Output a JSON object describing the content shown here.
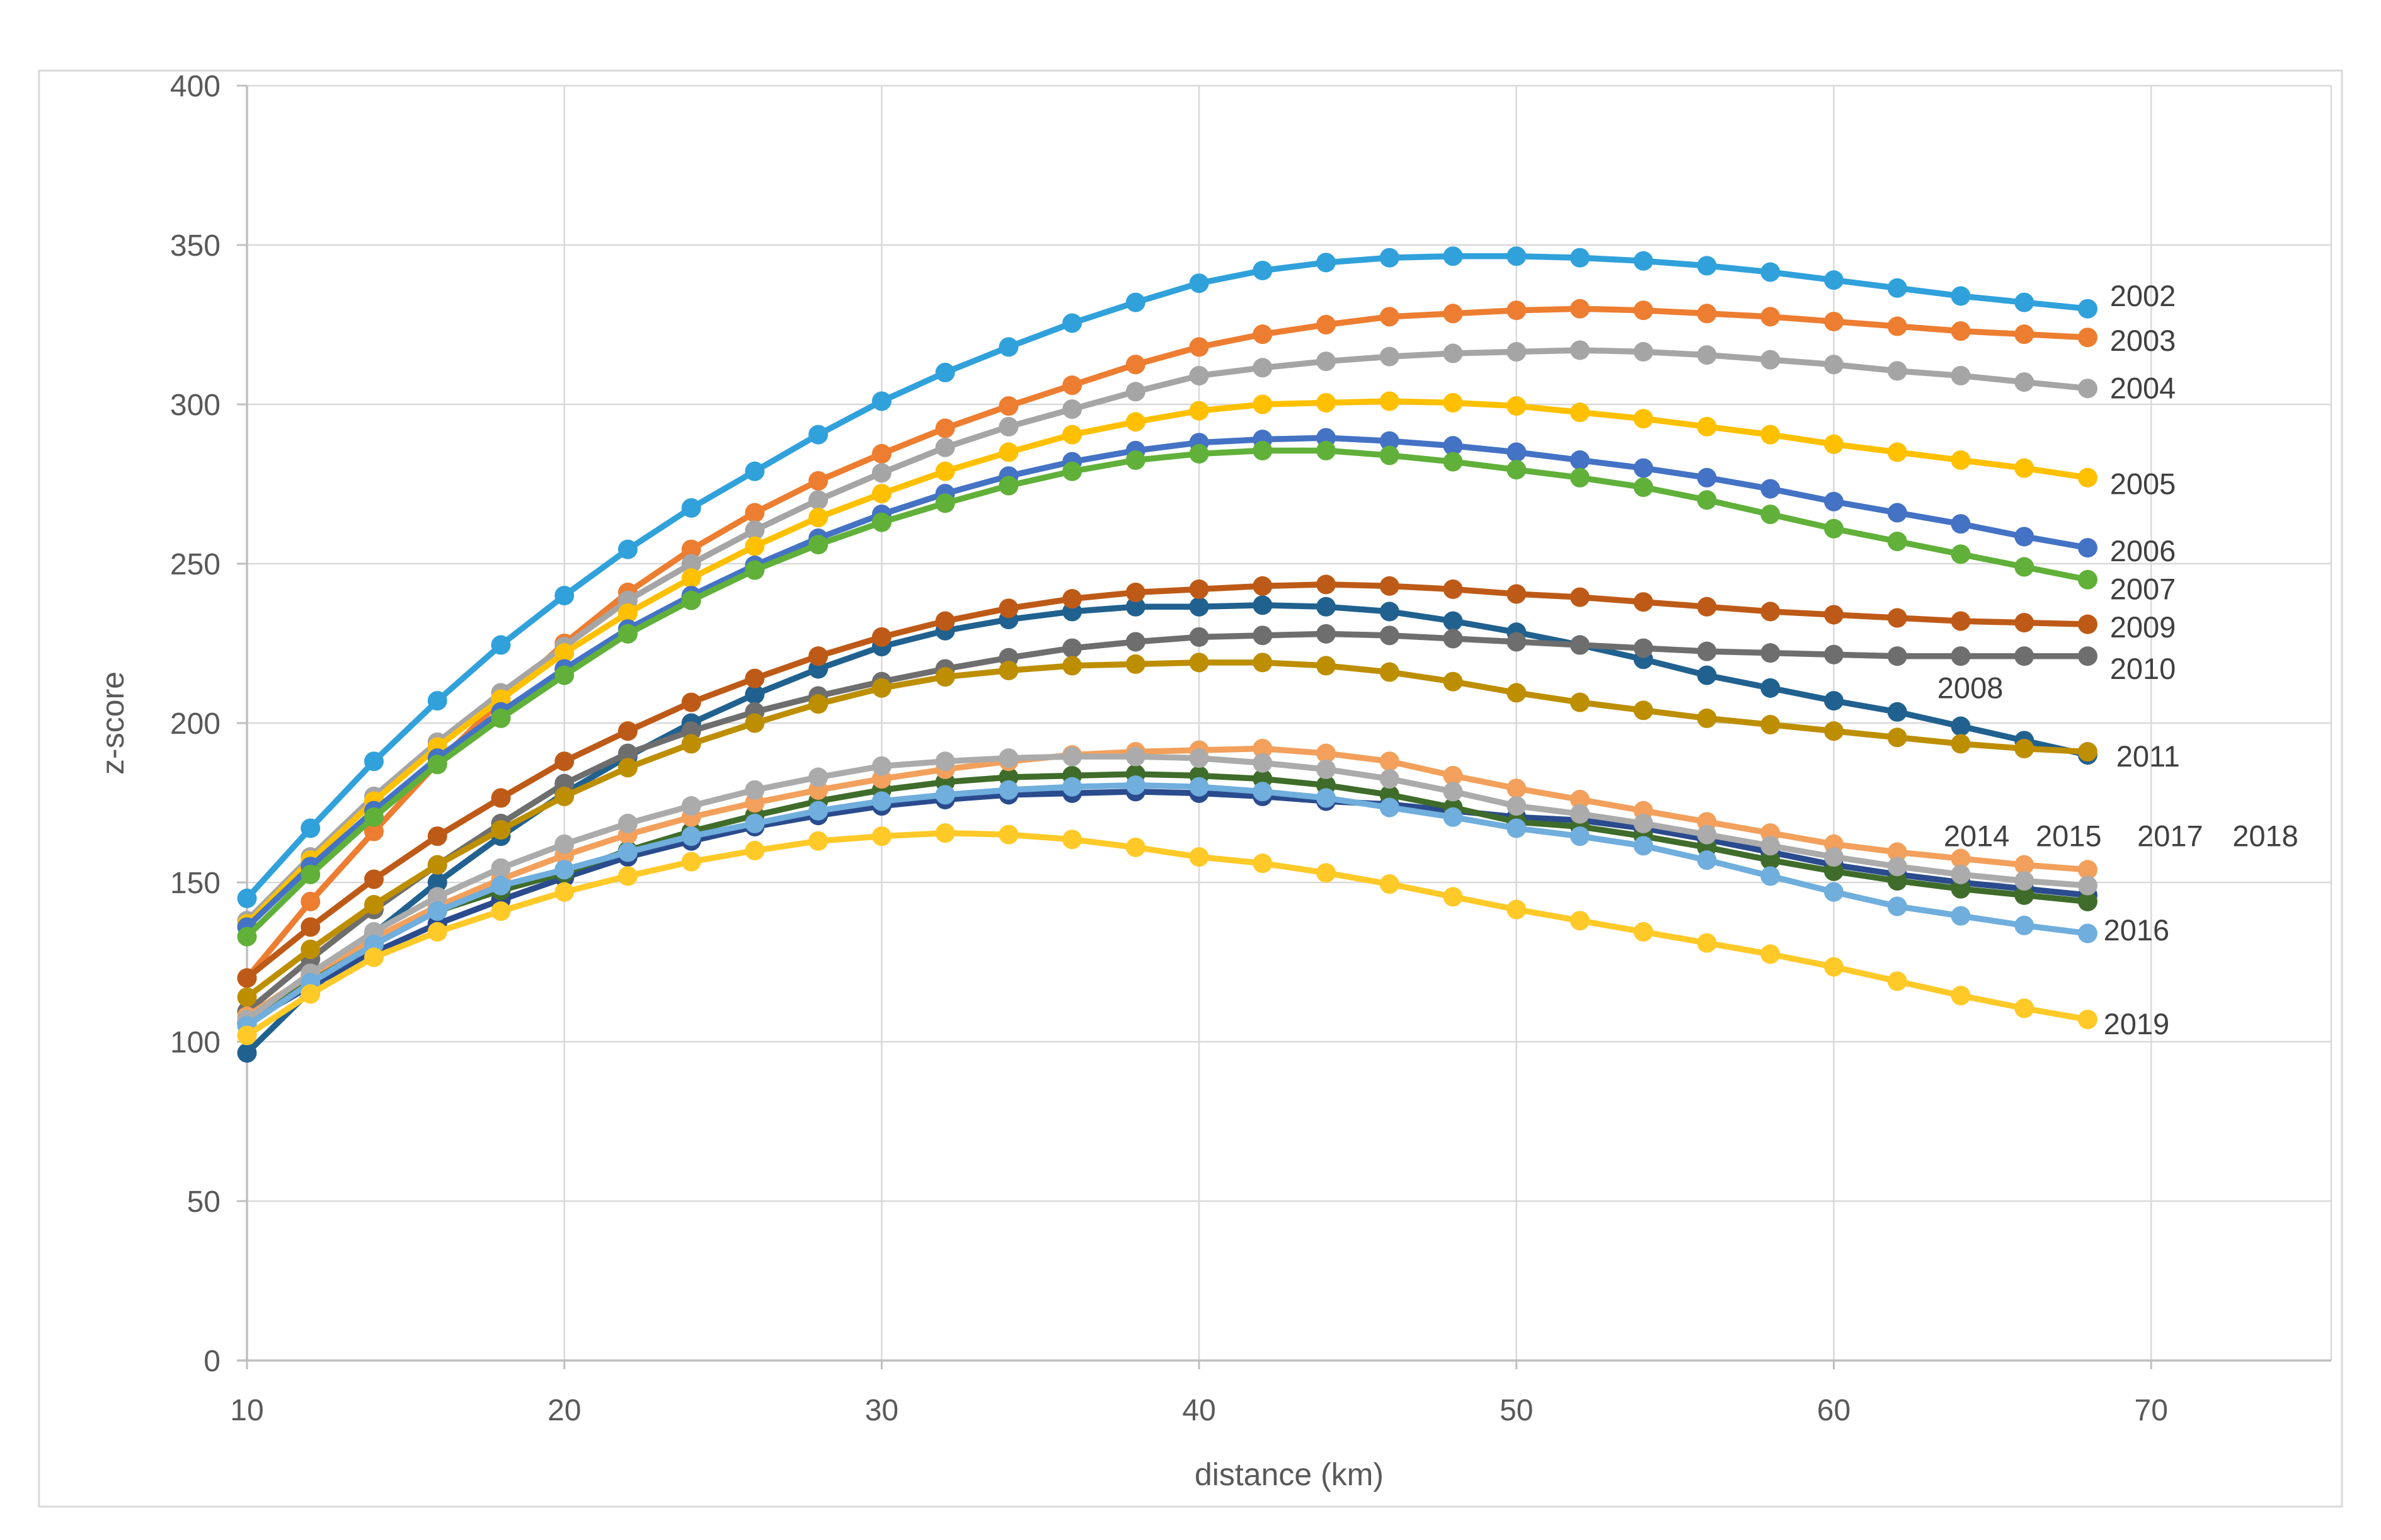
{
  "figure": {
    "background": "#FFFFFF",
    "border_color": "#D9D9D9",
    "grid_color": "#D9D9D9",
    "axis_color": "#BFBFBF",
    "tick_label_color": "#595959",
    "data_label_color": "#404040"
  },
  "chart_data": {
    "type": "line",
    "title": "",
    "xlabel": "distance (km)",
    "ylabel": "z-score",
    "xlim": [
      10,
      75.6
    ],
    "ylim": [
      0,
      400
    ],
    "x_ticks": [
      10,
      20,
      30,
      40,
      50,
      60,
      70
    ],
    "y_ticks": [
      0,
      50,
      100,
      150,
      200,
      250,
      300,
      350,
      400
    ],
    "grid": true,
    "legend_position": "end-of-line-labels",
    "marker": "circle",
    "x": [
      10,
      12,
      14,
      16,
      18,
      20,
      22,
      24,
      26,
      28,
      30,
      32,
      34,
      36,
      38,
      40,
      42,
      44,
      46,
      48,
      50,
      52,
      54,
      56,
      58,
      60,
      62,
      64,
      66,
      68
    ],
    "series": [
      {
        "name": "2002",
        "color": "#30A1DB",
        "values": [
          145,
          167,
          188,
          207,
          224.5,
          240,
          254.5,
          267.5,
          279,
          290.5,
          301,
          310,
          318,
          325.5,
          332,
          338,
          342,
          344.5,
          346,
          346.5,
          346.5,
          346,
          345,
          343.5,
          341.5,
          339,
          336.5,
          334,
          332,
          330
        ],
        "label": {
          "km": 68.7,
          "z": 334,
          "anchor": "start"
        }
      },
      {
        "name": "2003",
        "color": "#ED7D31",
        "values": [
          120,
          144,
          166,
          187.5,
          207,
          225,
          241,
          254.5,
          266,
          276,
          284.5,
          292.5,
          299.5,
          306,
          312.5,
          318,
          322,
          325,
          327.5,
          328.5,
          329.5,
          330,
          329.5,
          328.5,
          327.5,
          326,
          324.5,
          323,
          322,
          321
        ],
        "label": {
          "km": 68.7,
          "z": 320,
          "anchor": "start"
        }
      },
      {
        "name": "2004",
        "color": "#A5A5A5",
        "values": [
          138,
          158,
          177,
          194,
          209.5,
          224,
          238.5,
          250,
          260.5,
          270,
          278.5,
          286.5,
          293,
          298.5,
          304,
          309,
          311.5,
          313.5,
          315,
          316,
          316.5,
          317,
          316.5,
          315.5,
          314,
          312.5,
          310.5,
          309,
          307,
          305
        ],
        "label": {
          "km": 68.7,
          "z": 305,
          "anchor": "start"
        }
      },
      {
        "name": "2005",
        "color": "#FFC000",
        "values": [
          137,
          157,
          175.5,
          192.5,
          207.5,
          222,
          234.5,
          245.5,
          255.5,
          264.5,
          272,
          279,
          285,
          290.5,
          294.5,
          298,
          300,
          300.5,
          301,
          300.5,
          299.5,
          297.5,
          295.5,
          293,
          290.5,
          287.5,
          285,
          282.5,
          280,
          277
        ],
        "label": {
          "km": 68.7,
          "z": 275,
          "anchor": "start"
        }
      },
      {
        "name": "2006",
        "color": "#4472C4",
        "values": [
          136,
          155,
          172.5,
          189,
          203.5,
          217,
          229.5,
          240,
          249.5,
          258,
          265.5,
          272,
          277.5,
          282,
          285.5,
          288,
          289,
          289.5,
          288.5,
          287,
          285,
          282.5,
          280,
          277,
          273.5,
          269.5,
          266,
          262.5,
          258.5,
          255
        ],
        "label": {
          "km": 68.7,
          "z": 254,
          "anchor": "start"
        }
      },
      {
        "name": "2007",
        "color": "#60B03A",
        "values": [
          133,
          152.5,
          170.5,
          187,
          201.5,
          215,
          228,
          238.5,
          248,
          256,
          263,
          269,
          274.5,
          279,
          282.5,
          284.5,
          285.5,
          285.5,
          284,
          282,
          279.5,
          277,
          274,
          270,
          265.5,
          261,
          257,
          253,
          249,
          245
        ],
        "label": {
          "km": 68.7,
          "z": 242,
          "anchor": "start"
        }
      },
      {
        "name": "2008",
        "color": "#20618F",
        "values": [
          96.5,
          116,
          134,
          150,
          164.5,
          178,
          189.5,
          200,
          209,
          217,
          224,
          229,
          232.5,
          235,
          236.5,
          236.5,
          237,
          236.5,
          235,
          232,
          228.5,
          224.5,
          220,
          215,
          211,
          207,
          203.5,
          199,
          194.5,
          190
        ],
        "label": {
          "km": 64.3,
          "z": 211,
          "anchor": "middle"
        }
      },
      {
        "name": "2009",
        "color": "#BE5A17",
        "values": [
          120,
          136,
          151,
          164.5,
          176.5,
          188,
          197.5,
          206.5,
          214,
          221,
          227,
          232,
          236,
          239,
          241,
          242,
          243,
          243.5,
          243,
          242,
          240.5,
          239.5,
          238,
          236.5,
          235,
          234,
          233,
          232,
          231.5,
          231
        ],
        "label": {
          "km": 68.7,
          "z": 230,
          "anchor": "start"
        }
      },
      {
        "name": "2010",
        "color": "#6E6E6E",
        "values": [
          109.5,
          126,
          141.5,
          155.5,
          168.5,
          181,
          190.5,
          197.5,
          203.5,
          208.5,
          213,
          217,
          220.5,
          223.5,
          225.5,
          227,
          227.5,
          228,
          227.5,
          226.5,
          225.5,
          224.5,
          223.5,
          222.5,
          222,
          221.5,
          221,
          221,
          221,
          221
        ],
        "label": {
          "km": 68.7,
          "z": 217,
          "anchor": "start"
        }
      },
      {
        "name": "2011",
        "color": "#BD8E00",
        "values": [
          114,
          129,
          143,
          155.5,
          166.5,
          177,
          186,
          193.5,
          200,
          206,
          211,
          214.5,
          216.5,
          218,
          218.5,
          219,
          219,
          218,
          216,
          213,
          209.5,
          206.5,
          204,
          201.5,
          199.5,
          197.5,
          195.5,
          193.5,
          192,
          191
        ],
        "label": {
          "km": 68.9,
          "z": 189.5,
          "anchor": "start"
        }
      },
      {
        "name": "2017",
        "color": "#2A4B8D",
        "values": [
          106,
          117.5,
          128,
          137,
          144.5,
          151.5,
          158,
          163,
          167.5,
          171,
          174,
          176,
          177.5,
          178,
          178.5,
          178,
          177,
          175.5,
          174.5,
          172.5,
          170.5,
          169.5,
          167,
          163.5,
          159.5,
          155.5,
          152.5,
          150,
          148,
          146
        ],
        "label": {
          "km": 70.6,
          "z": 164.5,
          "anchor": "middle"
        }
      },
      {
        "name": "2018",
        "color": "#3F6C2A",
        "values": [
          105.5,
          119,
          131,
          141,
          147.5,
          153,
          160,
          166,
          171,
          175.5,
          179,
          181.5,
          183,
          183.5,
          184,
          183.5,
          182.5,
          180.5,
          177.5,
          173.5,
          169,
          167.5,
          164.5,
          161,
          157,
          153.5,
          150.5,
          148,
          146,
          144
        ],
        "label": {
          "km": 73.6,
          "z": 164.5,
          "anchor": "middle"
        }
      },
      {
        "name": "2014",
        "color": "#F2A05C",
        "values": [
          108,
          121,
          132.5,
          142.5,
          151,
          158.5,
          165,
          170.5,
          175,
          179,
          182.5,
          185.5,
          188,
          190,
          191,
          191.5,
          192,
          190.5,
          188,
          183.5,
          179.5,
          176,
          172.5,
          169,
          165.5,
          162,
          159.5,
          157.5,
          155.5,
          154
        ],
        "label": {
          "km": 64.5,
          "z": 164.5,
          "anchor": "middle"
        }
      },
      {
        "name": "2015",
        "color": "#ABABAB",
        "values": [
          107,
          121.5,
          134.5,
          145.5,
          154.5,
          162,
          168.5,
          174,
          179,
          183,
          186.5,
          188,
          189,
          189.5,
          189.5,
          189,
          187.5,
          185.5,
          182.5,
          178.5,
          174,
          171.5,
          168.5,
          165,
          161.5,
          158,
          155,
          152.5,
          150.5,
          149
        ],
        "label": {
          "km": 67.4,
          "z": 164.5,
          "anchor": "middle"
        }
      },
      {
        "name": "2016",
        "color": "#6FAEDD",
        "values": [
          105,
          118.5,
          130.5,
          141,
          149,
          154,
          159.5,
          164.5,
          168.5,
          172.5,
          175.5,
          177.5,
          179,
          180,
          180.5,
          180,
          178.5,
          176.5,
          173.5,
          170.5,
          167,
          164.5,
          161.5,
          157,
          152,
          147,
          142.5,
          139.5,
          136.5,
          134
        ],
        "label": {
          "km": 68.5,
          "z": 135,
          "anchor": "start"
        }
      },
      {
        "name": "2019",
        "color": "#FFC928",
        "values": [
          102,
          115,
          126.5,
          134.5,
          141,
          147,
          152,
          156.5,
          160,
          163,
          164.5,
          165.5,
          165,
          163.5,
          161,
          158,
          156,
          153,
          149.5,
          145.5,
          141.5,
          138,
          134.5,
          131,
          127.5,
          123.5,
          119,
          114.5,
          110.5,
          107
        ],
        "label": {
          "km": 68.5,
          "z": 105.5,
          "anchor": "start"
        }
      }
    ]
  }
}
